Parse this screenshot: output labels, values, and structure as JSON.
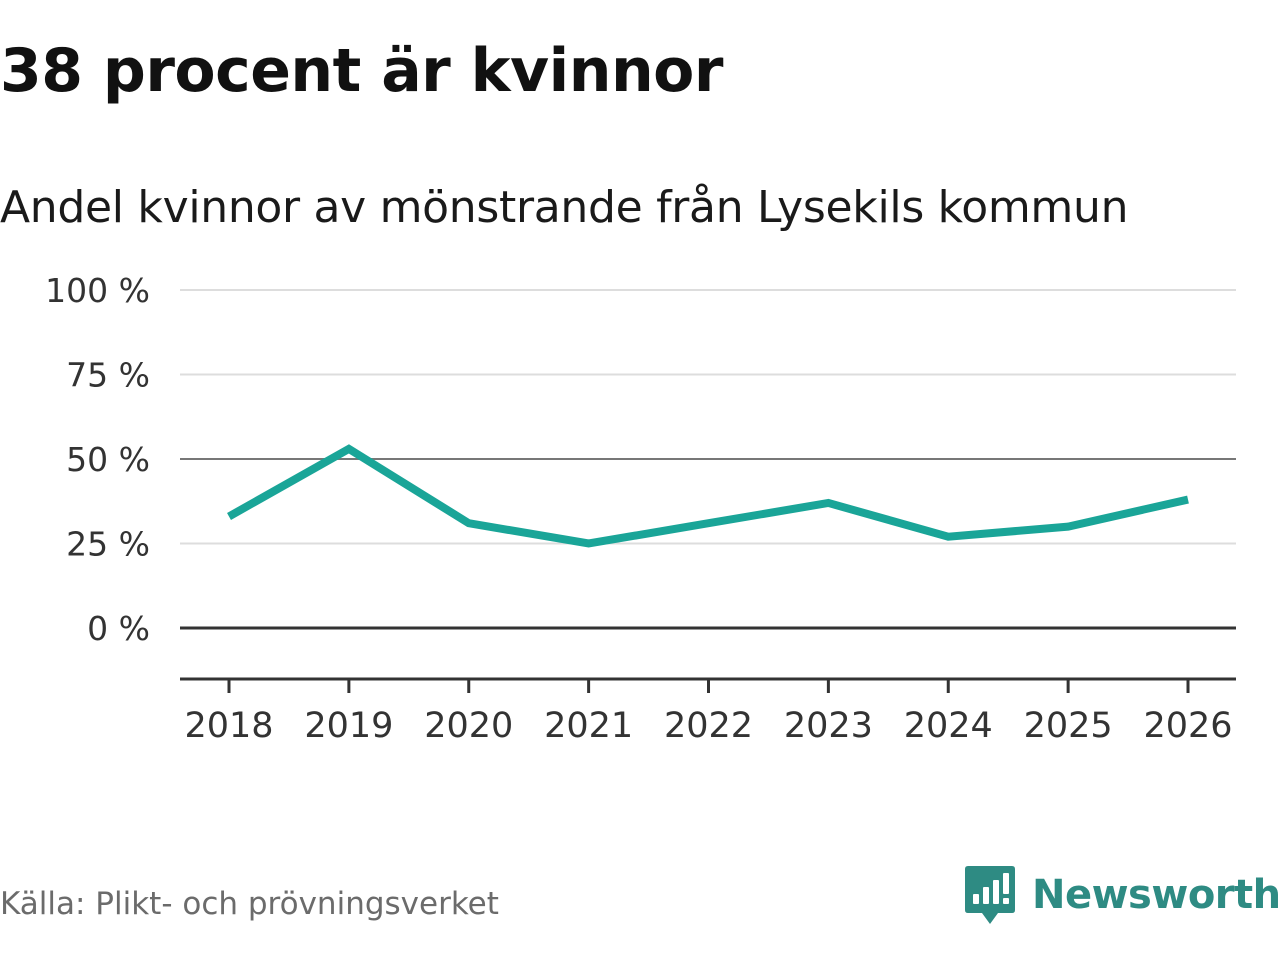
{
  "header": {
    "title": "38 procent är kvinnor",
    "subtitle": "Andel kvinnor av mönstrande från Lysekils kommun"
  },
  "footer": {
    "source": "Källa: Plikt- och prövningsverket",
    "brand": "Newsworthy"
  },
  "colors": {
    "line": "#1aa598",
    "grid": "#dddddd",
    "axis": "#333333",
    "brand": "#2e8b83"
  },
  "chart_data": {
    "type": "line",
    "title": "38 procent är kvinnor",
    "subtitle": "Andel kvinnor av mönstrande från Lysekils kommun",
    "xlabel": "",
    "ylabel": "",
    "categories": [
      "2018",
      "2019",
      "2020",
      "2021",
      "2022",
      "2023",
      "2024",
      "2025",
      "2026"
    ],
    "series": [
      {
        "name": "Andel kvinnor",
        "values": [
          33,
          53,
          31,
          25,
          31,
          37,
          27,
          30,
          38
        ]
      }
    ],
    "ylim": [
      -15,
      100
    ],
    "yticks": [
      0,
      25,
      50,
      75,
      100
    ],
    "ytick_labels": [
      "0 %",
      "25 %",
      "50 %",
      "75 %",
      "100 %"
    ],
    "grid": true,
    "legend": "none"
  }
}
